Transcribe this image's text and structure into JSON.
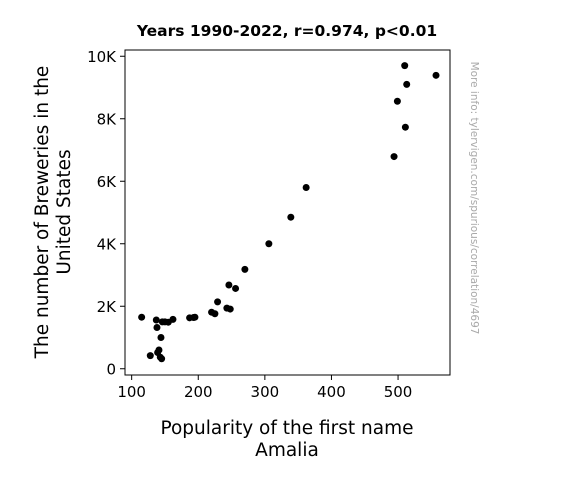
{
  "chart_data": {
    "type": "scatter",
    "title": "Years 1990-2022, r=0.974, p<0.01",
    "xlabel": [
      "Popularity of the first name",
      "Amalia"
    ],
    "ylabel": [
      "The number of Breweries in the",
      "United States"
    ],
    "xlim": [
      90,
      578
    ],
    "ylim": [
      -200,
      10200
    ],
    "x_ticks": [
      100,
      200,
      300,
      400,
      500
    ],
    "x_tick_labels": [
      "100",
      "200",
      "300",
      "400",
      "500"
    ],
    "y_ticks": [
      0,
      2000,
      4000,
      6000,
      8000,
      10000
    ],
    "y_tick_labels": [
      "0",
      "2K",
      "4K",
      "6K",
      "8K",
      "10K"
    ],
    "grid": false,
    "point_color": "#000000",
    "watermark": "More info: tylervigen.com/spurious/correlation/4697",
    "points": [
      {
        "x": 115,
        "y": 1650
      },
      {
        "x": 128,
        "y": 420
      },
      {
        "x": 137,
        "y": 1560
      },
      {
        "x": 138,
        "y": 1320
      },
      {
        "x": 139,
        "y": 520
      },
      {
        "x": 141,
        "y": 600
      },
      {
        "x": 143,
        "y": 370
      },
      {
        "x": 144,
        "y": 1000
      },
      {
        "x": 145,
        "y": 320
      },
      {
        "x": 146,
        "y": 1500
      },
      {
        "x": 150,
        "y": 1500
      },
      {
        "x": 155,
        "y": 1490
      },
      {
        "x": 162,
        "y": 1580
      },
      {
        "x": 187,
        "y": 1630
      },
      {
        "x": 193,
        "y": 1640
      },
      {
        "x": 195,
        "y": 1650
      },
      {
        "x": 220,
        "y": 1810
      },
      {
        "x": 225,
        "y": 1760
      },
      {
        "x": 229,
        "y": 2140
      },
      {
        "x": 243,
        "y": 1940
      },
      {
        "x": 246,
        "y": 2680
      },
      {
        "x": 248,
        "y": 1910
      },
      {
        "x": 256,
        "y": 2570
      },
      {
        "x": 270,
        "y": 3180
      },
      {
        "x": 306,
        "y": 4000
      },
      {
        "x": 339,
        "y": 4850
      },
      {
        "x": 362,
        "y": 5800
      },
      {
        "x": 494,
        "y": 6790
      },
      {
        "x": 499,
        "y": 8560
      },
      {
        "x": 510,
        "y": 9700
      },
      {
        "x": 511,
        "y": 7730
      },
      {
        "x": 513,
        "y": 9100
      },
      {
        "x": 557,
        "y": 9390
      }
    ]
  }
}
